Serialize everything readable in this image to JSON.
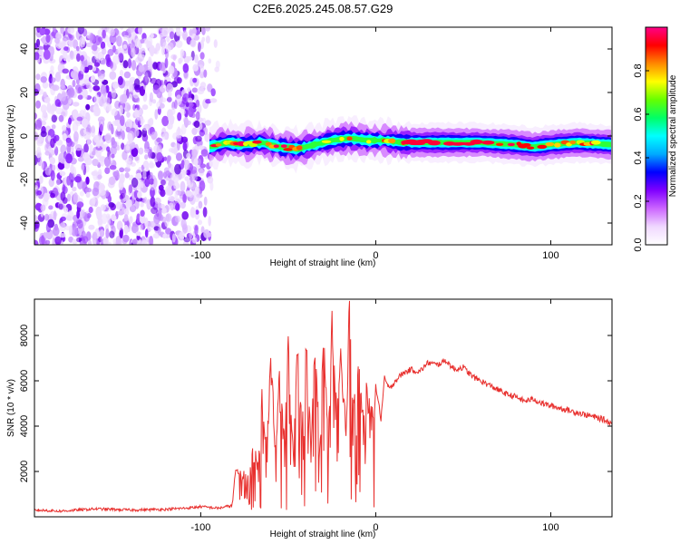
{
  "title": "C2E6.2025.245.08.57.G29",
  "chart_data": [
    {
      "id": "spectrogram",
      "type": "heatmap",
      "xlabel": "Height of straight line (km)",
      "ylabel": "Frequency (Hz)",
      "xlim": [
        -195,
        135
      ],
      "ylim": [
        -50,
        50
      ],
      "xticks": [
        -100,
        0,
        100
      ],
      "xtick_labels": [
        "-100",
        "0",
        "100"
      ],
      "yticks": [
        -40,
        -20,
        0,
        20,
        40
      ],
      "ytick_labels": [
        "-40",
        "-20",
        "0",
        "20",
        "40"
      ],
      "noise_region_x": [
        -195,
        -92
      ],
      "signal_trace": {
        "x": [
          -95,
          -85,
          -75,
          -65,
          -55,
          -45,
          -35,
          -25,
          -15,
          -5,
          5,
          15,
          25,
          40,
          60,
          80,
          90,
          100,
          115,
          135
        ],
        "y": [
          -5,
          -3,
          -4,
          -3,
          -5,
          -6,
          -4,
          -2,
          -1,
          -2,
          -2,
          -3,
          -3,
          -3,
          -3,
          -4,
          -5,
          -4,
          -3,
          -4
        ]
      },
      "colorbar": {
        "label": "Normalized spectral amplitude",
        "range": [
          0,
          1
        ],
        "ticks": [
          0.0,
          0.2,
          0.4,
          0.6,
          0.8
        ],
        "tick_labels": [
          "0.0",
          "0.2",
          "0.4",
          "0.6",
          "0.8"
        ],
        "colormap": [
          "#ffffff",
          "#f0d8ff",
          "#cc66ff",
          "#8000ff",
          "#0000ff",
          "#00aaff",
          "#00ffff",
          "#00ff66",
          "#66ff00",
          "#ffff00",
          "#ff8800",
          "#ff0000",
          "#ff0088"
        ]
      }
    },
    {
      "id": "snr",
      "type": "line",
      "xlabel": "Height of straight line (km)",
      "ylabel": "SNR (10 * v/v)",
      "xlim": [
        -195,
        135
      ],
      "ylim": [
        0,
        9600
      ],
      "xticks": [
        -100,
        0,
        100
      ],
      "xtick_labels": [
        "-100",
        "0",
        "100"
      ],
      "yticks": [
        2000,
        4000,
        6000,
        8000
      ],
      "ytick_labels": [
        "2000",
        "4000",
        "6000",
        "8000"
      ],
      "series": [
        {
          "name": "SNR",
          "color": "#e8302e",
          "x": [
            -195,
            -180,
            -160,
            -140,
            -120,
            -105,
            -100,
            -90,
            -82,
            -80,
            -78,
            -75,
            -72,
            -70,
            -67,
            -65,
            -62,
            -60,
            -57,
            -55,
            -52,
            -50,
            -47,
            -45,
            -42,
            -40,
            -37,
            -35,
            -32,
            -30,
            -27,
            -25,
            -22,
            -20,
            -17,
            -15,
            -13,
            -10,
            -7,
            -5,
            -2,
            0,
            3,
            5,
            8,
            10,
            15,
            20,
            25,
            30,
            35,
            40,
            45,
            50,
            55,
            60,
            65,
            70,
            75,
            80,
            85,
            90,
            95,
            100,
            105,
            110,
            115,
            120,
            125,
            130,
            135
          ],
          "y": [
            300,
            250,
            350,
            300,
            330,
            400,
            450,
            380,
            500,
            2100,
            1800,
            1500,
            1200,
            3000,
            2000,
            5200,
            3000,
            7000,
            2500,
            6800,
            3500,
            7500,
            2000,
            7200,
            4000,
            7800,
            3000,
            8200,
            2500,
            7900,
            3200,
            8600,
            4000,
            7500,
            3500,
            9600,
            4500,
            7000,
            3800,
            5500,
            4200,
            5800,
            4300,
            6100,
            5600,
            5900,
            6300,
            6500,
            6400,
            6800,
            6700,
            6900,
            6500,
            6600,
            6200,
            6000,
            5800,
            5600,
            5400,
            5300,
            5100,
            5200,
            5000,
            4900,
            4800,
            4700,
            4600,
            4500,
            4400,
            4300,
            4100
          ]
        }
      ]
    }
  ]
}
